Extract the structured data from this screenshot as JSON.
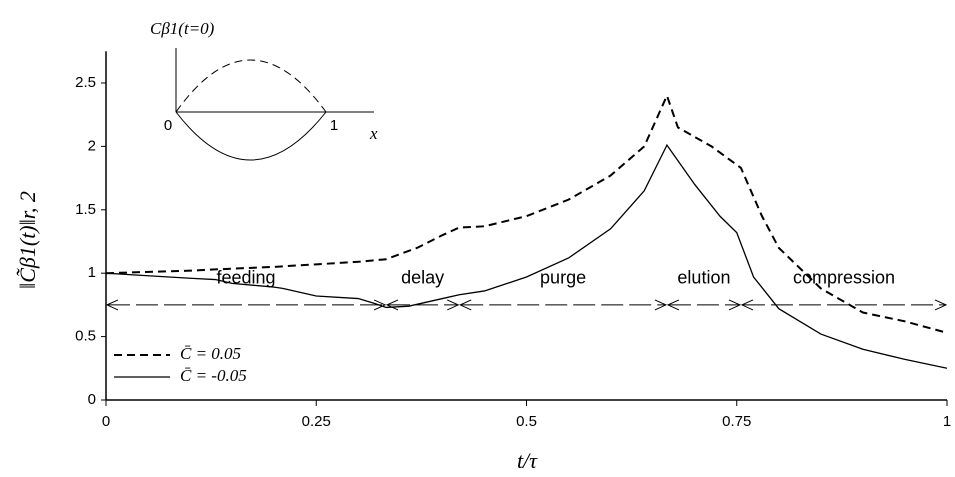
{
  "chart_data": {
    "type": "line",
    "xlabel": "t/τ",
    "ylabel": "‖C̃β1(t)‖r, 2",
    "xlim": [
      0,
      1
    ],
    "ylim": [
      0,
      2.75
    ],
    "xticks": [
      0,
      0.25,
      0.5,
      0.75,
      1
    ],
    "yticks": [
      0,
      0.5,
      1,
      1.5,
      2,
      2.5
    ],
    "legend": "lower left",
    "series": [
      {
        "name": "C̄ = 0.05",
        "color": "#000000",
        "dash": "dashed",
        "x": [
          0,
          0.1,
          0.13,
          0.2,
          0.25,
          0.3,
          0.333,
          0.37,
          0.4,
          0.42,
          0.45,
          0.5,
          0.55,
          0.6,
          0.64,
          0.667,
          0.68,
          0.72,
          0.755,
          0.78,
          0.8,
          0.85,
          0.9,
          0.95,
          1
        ],
        "values": [
          1.0,
          1.02,
          1.03,
          1.05,
          1.07,
          1.09,
          1.11,
          1.2,
          1.3,
          1.36,
          1.37,
          1.45,
          1.58,
          1.77,
          2.0,
          2.4,
          2.15,
          2.0,
          1.83,
          1.45,
          1.2,
          0.88,
          0.69,
          0.62,
          0.53
        ]
      },
      {
        "name": "C̄ = -0.05",
        "color": "#000000",
        "dash": "solid",
        "x": [
          0,
          0.05,
          0.1,
          0.13,
          0.15,
          0.2,
          0.21,
          0.25,
          0.3,
          0.32,
          0.333,
          0.36,
          0.4,
          0.42,
          0.45,
          0.5,
          0.55,
          0.6,
          0.64,
          0.667,
          0.7,
          0.73,
          0.75,
          0.77,
          0.8,
          0.85,
          0.9,
          0.95,
          1
        ],
        "values": [
          1.0,
          0.98,
          0.96,
          0.95,
          0.92,
          0.89,
          0.88,
          0.82,
          0.8,
          0.76,
          0.73,
          0.74,
          0.8,
          0.83,
          0.86,
          0.97,
          1.12,
          1.35,
          1.65,
          2.01,
          1.7,
          1.45,
          1.32,
          0.97,
          0.72,
          0.52,
          0.4,
          0.32,
          0.25
        ]
      }
    ],
    "phase_level": 0.75,
    "phases": [
      {
        "label": "feeding",
        "start": 0,
        "end": 0.333
      },
      {
        "label": "delay",
        "start": 0.333,
        "end": 0.42
      },
      {
        "label": "purge",
        "start": 0.42,
        "end": 0.667
      },
      {
        "label": "elution",
        "start": 0.667,
        "end": 0.755
      },
      {
        "label": "compression",
        "start": 0.755,
        "end": 1
      }
    ],
    "inset": {
      "title": "Cβ1(t=0)",
      "left": "0",
      "right": "1",
      "axis": "x"
    }
  }
}
